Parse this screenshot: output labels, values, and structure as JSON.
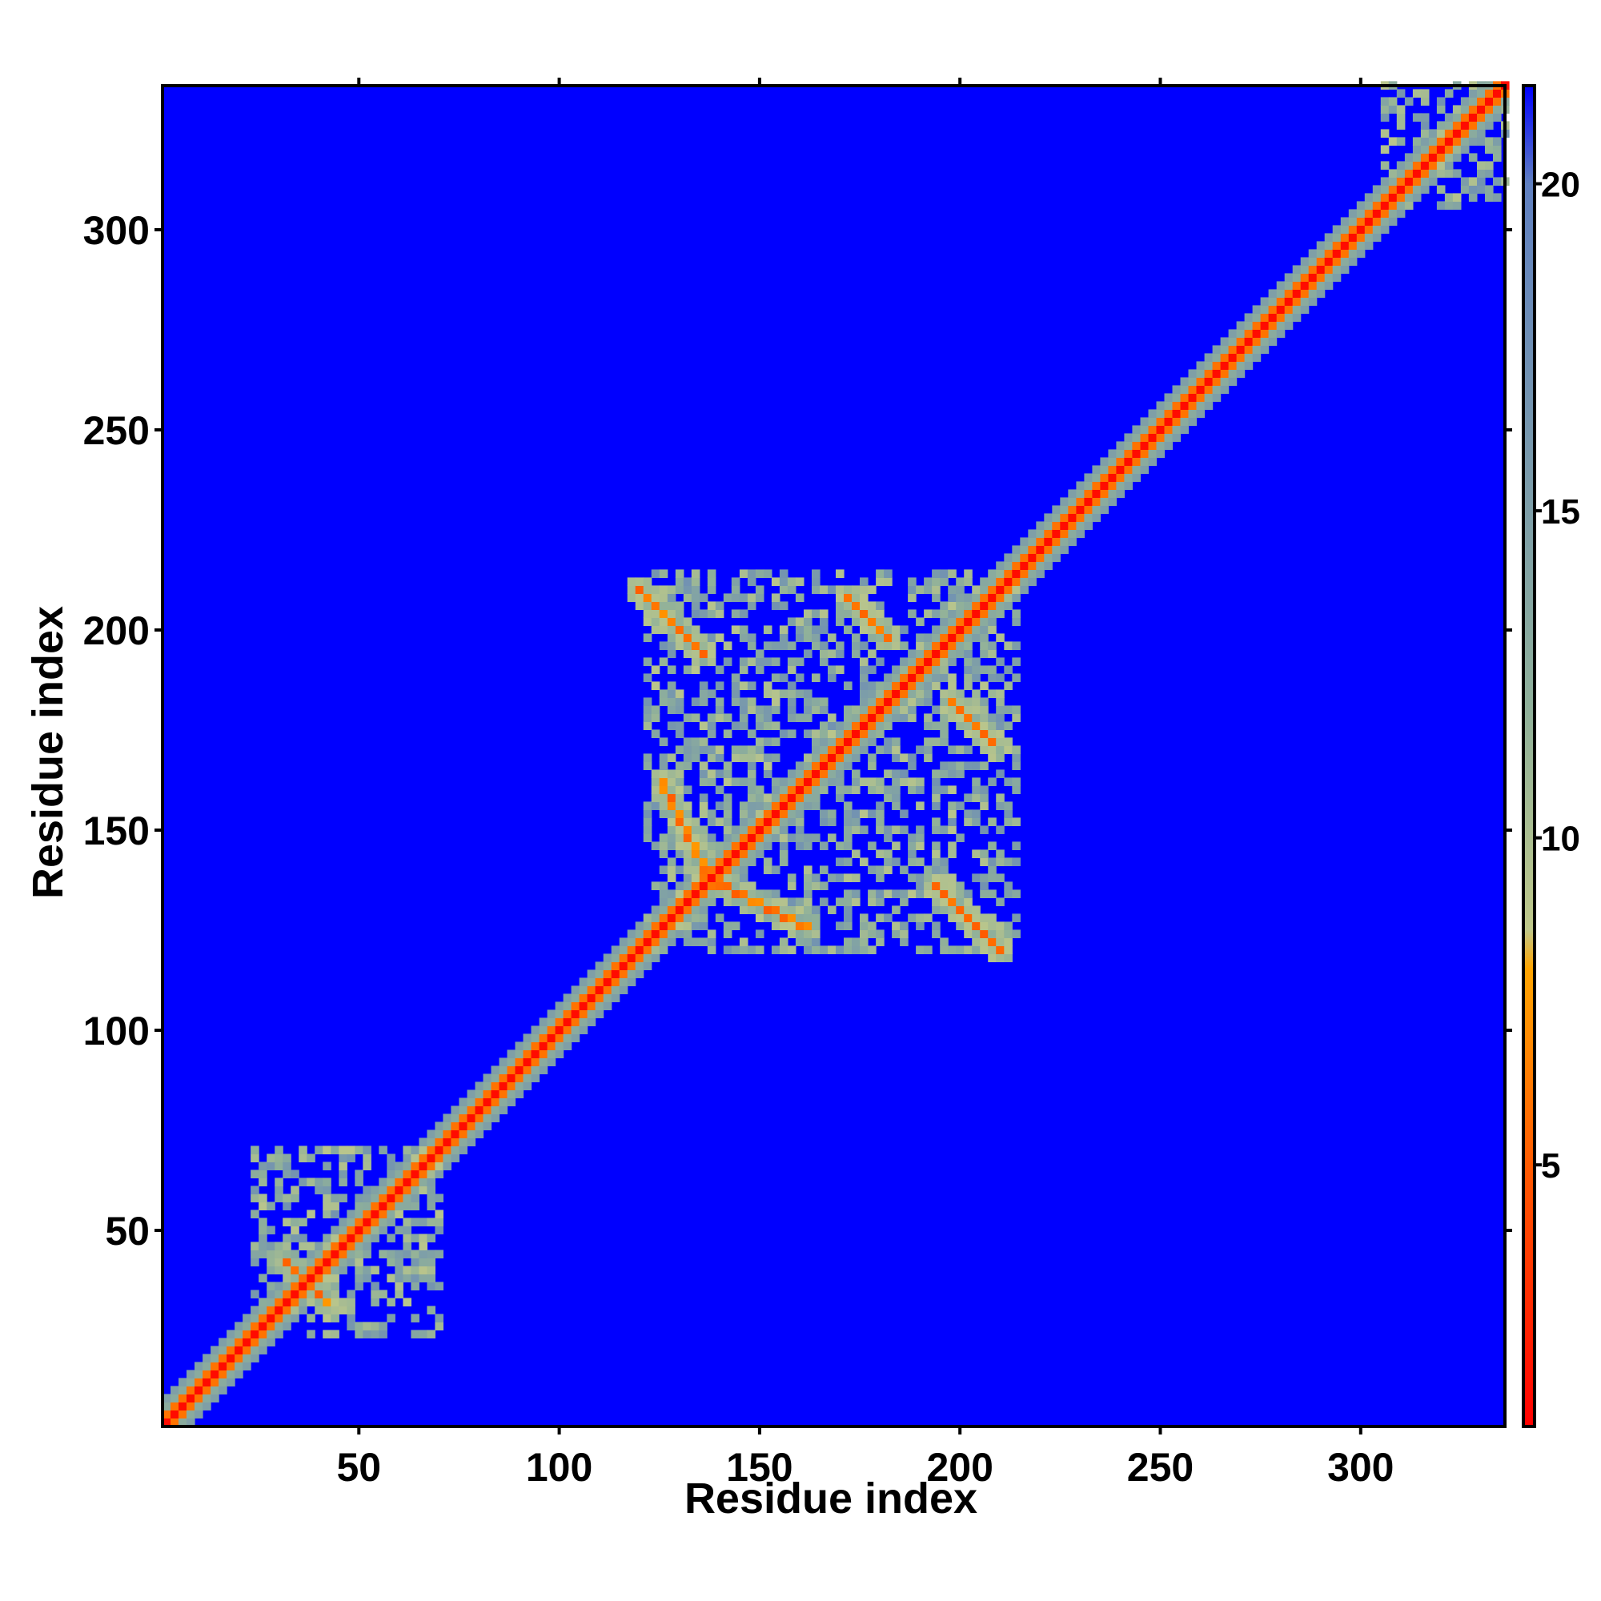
{
  "chart_data": {
    "type": "heatmap",
    "title": "",
    "xlabel": "Residue index",
    "ylabel": "Residue index",
    "xlim": [
      1,
      336
    ],
    "ylim": [
      1,
      336
    ],
    "x_ticks": [
      50,
      100,
      150,
      200,
      250,
      300
    ],
    "y_ticks": [
      50,
      100,
      150,
      200,
      250,
      300
    ],
    "x_tick_labels": [
      "50",
      "100",
      "150",
      "200",
      "250",
      "300"
    ],
    "y_tick_labels": [
      "50",
      "100",
      "150",
      "200",
      "250",
      "300"
    ],
    "colorbar": {
      "range": [
        1,
        21.5
      ],
      "ticks": [
        5,
        10,
        15,
        20
      ],
      "tick_labels": [
        "5",
        "10",
        "15",
        "20"
      ],
      "colors": [
        {
          "value": 1,
          "color": "#ff0000"
        },
        {
          "value": 5,
          "color": "#ff5a00"
        },
        {
          "value": 8,
          "color": "#ffa500"
        },
        {
          "value": 8.6,
          "color": "#bfc88a"
        },
        {
          "value": 12,
          "color": "#8fb09a"
        },
        {
          "value": 20,
          "color": "#6080c0"
        },
        {
          "value": 21.5,
          "color": "#0000ff"
        }
      ]
    },
    "background_value": 21.5,
    "features": {
      "diagonal": {
        "from": 1,
        "to": 336,
        "contact_value": 1.5
      },
      "domains": [
        {
          "name": "",
          "x_range": [
            22,
            70
          ],
          "y_range": [
            22,
            70
          ]
        },
        {
          "name": "",
          "x_range": [
            120,
            214
          ],
          "y_range": [
            118,
            214
          ]
        },
        {
          "name": "",
          "x_range": [
            305,
            336
          ],
          "y_range": [
            305,
            336
          ]
        }
      ],
      "antiparallel_contacts": [
        {
          "x": [
            119,
            135
          ],
          "y": [
            209,
            193
          ]
        },
        {
          "x": [
            171,
            181
          ],
          "y": [
            207,
            197
          ]
        },
        {
          "x": [
            193,
            209
          ],
          "y": [
            135,
            119
          ]
        },
        {
          "x": [
            197,
            207
          ],
          "y": [
            181,
            171
          ]
        },
        {
          "x": [
            140,
            160
          ],
          "y": [
            135,
            125
          ]
        },
        {
          "x": [
            30,
            40
          ],
          "y": [
            42,
            32
          ]
        }
      ]
    },
    "grid": false,
    "legend": "colorbar-right"
  }
}
